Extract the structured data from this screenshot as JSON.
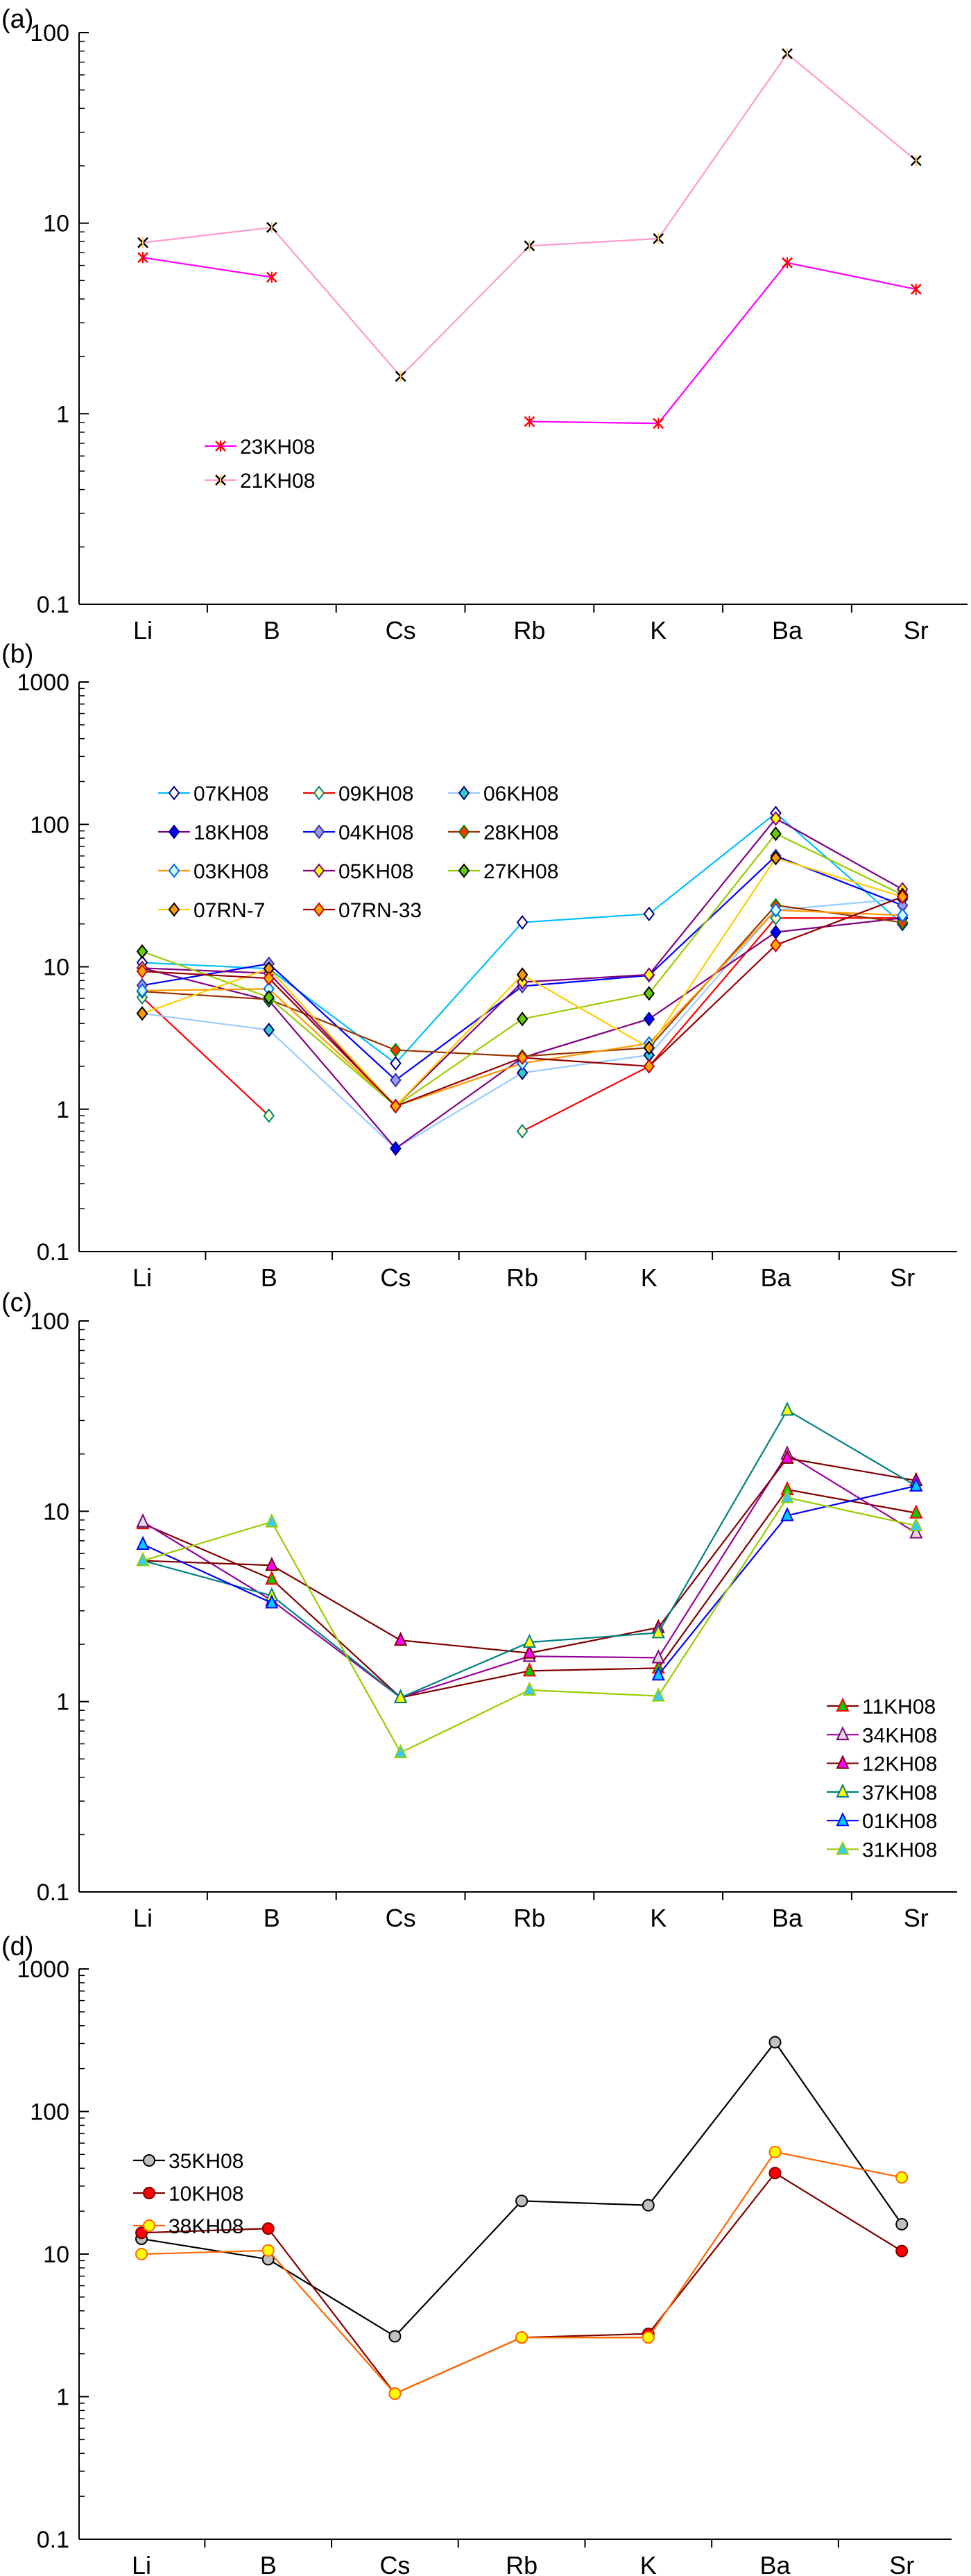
{
  "chart_data": [
    {
      "panel_label": "(a)",
      "type": "line",
      "y_scale": "log",
      "ylim": [
        0.1,
        100
      ],
      "ytick_labels": [
        "0.1",
        "1",
        "10",
        "100"
      ],
      "categories": [
        "Li",
        "B",
        "Cs",
        "Rb",
        "K",
        "Ba",
        "Sr"
      ],
      "grid": false,
      "legend_position": "center-left",
      "series": [
        {
          "name": "23KH08",
          "values": [
            6.6,
            5.2,
            null,
            0.91,
            0.89,
            6.2,
            4.5
          ],
          "line_color": "#ff00ff",
          "marker": "asterisk",
          "marker_fill": "#ff0000",
          "marker_stroke": "#ff0000"
        },
        {
          "name": "21KH08",
          "values": [
            7.9,
            9.5,
            1.57,
            7.6,
            8.3,
            77.5,
            21.3
          ],
          "line_color": "#ff99cc",
          "marker": "asterisk",
          "marker_fill": "#ffcc66",
          "marker_stroke": "#000000"
        }
      ]
    },
    {
      "panel_label": "(b)",
      "type": "line",
      "y_scale": "log",
      "ylim": [
        0.1,
        1000
      ],
      "ytick_labels": [
        "0.1",
        "1",
        "10",
        "100",
        "1000"
      ],
      "categories": [
        "Li",
        "B",
        "Cs",
        "Rb",
        "K",
        "Ba",
        "Sr"
      ],
      "grid": false,
      "legend_position": "top-left",
      "series": [
        {
          "name": "07KH08",
          "values": [
            10.7,
            9.7,
            2.1,
            20.5,
            23.5,
            120,
            20
          ],
          "line_color": "#00bfff",
          "marker": "diamond",
          "marker_fill": "#ffffff",
          "marker_stroke": "#000080"
        },
        {
          "name": "09KH08",
          "values": [
            6.1,
            0.9,
            null,
            0.7,
            2.0,
            22,
            22
          ],
          "line_color": "#ff0000",
          "marker": "diamond",
          "marker_fill": "#ffffcc",
          "marker_stroke": "#008080"
        },
        {
          "name": "06KH08",
          "values": [
            4.7,
            3.6,
            0.53,
            1.8,
            2.4,
            25,
            30
          ],
          "line_color": "#99ccff",
          "marker": "diamond",
          "marker_fill": "#33cccc",
          "marker_stroke": "#000080"
        },
        {
          "name": "18KH08",
          "values": [
            9.8,
            5.8,
            0.53,
            2.3,
            4.3,
            17.5,
            22
          ],
          "line_color": "#800080",
          "marker": "diamond",
          "marker_fill": "#0000ff",
          "marker_stroke": "#000080"
        },
        {
          "name": "04KH08",
          "values": [
            7.4,
            10.5,
            1.6,
            7.3,
            8.7,
            60,
            27
          ],
          "line_color": "#0000ff",
          "marker": "diamond",
          "marker_fill": "#9999ff",
          "marker_stroke": "#333399"
        },
        {
          "name": "28KH08",
          "values": [
            6.7,
            5.9,
            2.6,
            2.35,
            2.7,
            27,
            20.5
          ],
          "line_color": "#993300",
          "marker": "diamond",
          "marker_fill": "#ff3300",
          "marker_stroke": "#008000"
        },
        {
          "name": "03KH08",
          "values": [
            6.8,
            7.0,
            1.05,
            2.1,
            2.9,
            25,
            23
          ],
          "line_color": "#ff9900",
          "marker": "diamond",
          "marker_fill": "#ccffff",
          "marker_stroke": "#0066ff"
        },
        {
          "name": "05KH08",
          "values": [
            9.8,
            9.0,
            1.05,
            7.8,
            8.8,
            110,
            35
          ],
          "line_color": "#800080",
          "marker": "diamond",
          "marker_fill": "#ffff00",
          "marker_stroke": "#800080"
        },
        {
          "name": "27KH08",
          "values": [
            12.8,
            6.1,
            1.05,
            4.3,
            6.5,
            86,
            32
          ],
          "line_color": "#99cc00",
          "marker": "diamond",
          "marker_fill": "#66cc00",
          "marker_stroke": "#000000"
        },
        {
          "name": "07RN-7",
          "values": [
            4.7,
            9.7,
            1.05,
            8.8,
            2.7,
            58,
            31
          ],
          "line_color": "#ffcc00",
          "marker": "diamond",
          "marker_fill": "#ff9900",
          "marker_stroke": "#000000"
        },
        {
          "name": "07RN-33",
          "values": [
            9.3,
            8.3,
            1.05,
            2.3,
            2.0,
            14.2,
            31
          ],
          "line_color": "#990000",
          "marker": "diamond",
          "marker_fill": "#ffaa00",
          "marker_stroke": "#cc0000"
        }
      ]
    },
    {
      "panel_label": "(c)",
      "type": "line",
      "y_scale": "log",
      "ylim": [
        0.1,
        100
      ],
      "ytick_labels": [
        "0.1",
        "1",
        "10",
        "100"
      ],
      "categories": [
        "Li",
        "B",
        "Cs",
        "Rb",
        "K",
        "Ba",
        "Sr"
      ],
      "grid": false,
      "legend_position": "bottom-right",
      "series": [
        {
          "name": "11KH08",
          "values": [
            8.6,
            4.4,
            1.05,
            1.45,
            1.5,
            13,
            9.8
          ],
          "line_color": "#800000",
          "marker": "triangle",
          "marker_fill": "#00cc00",
          "marker_stroke": "#ff0000"
        },
        {
          "name": "34KH08",
          "values": [
            8.8,
            3.4,
            1.05,
            1.73,
            1.7,
            20,
            7.7
          ],
          "line_color": "#990099",
          "marker": "triangle",
          "marker_fill": "#dddddd",
          "marker_stroke": "#800080"
        },
        {
          "name": "12KH08",
          "values": [
            5.5,
            5.2,
            2.1,
            1.8,
            2.45,
            19,
            14.5
          ],
          "line_color": "#800000",
          "marker": "triangle",
          "marker_fill": "#ff00ff",
          "marker_stroke": "#800000"
        },
        {
          "name": "37KH08",
          "values": [
            5.5,
            3.6,
            1.05,
            2.05,
            2.3,
            34,
            13.6
          ],
          "line_color": "#008080",
          "marker": "triangle",
          "marker_fill": "#ffff00",
          "marker_stroke": "#008080"
        },
        {
          "name": "01KH08",
          "values": [
            6.7,
            3.3,
            null,
            null,
            1.38,
            9.5,
            13.6
          ],
          "line_color": "#0000ff",
          "marker": "triangle",
          "marker_fill": "#00ccff",
          "marker_stroke": "#0000ff"
        },
        {
          "name": "31KH08",
          "values": [
            5.5,
            8.8,
            0.54,
            1.15,
            1.07,
            11.8,
            8.4
          ],
          "line_color": "#99cc00",
          "marker": "triangle",
          "marker_fill": "#33ccff",
          "marker_stroke": "#99cc00"
        }
      ]
    },
    {
      "panel_label": "(d)",
      "type": "line",
      "y_scale": "log",
      "ylim": [
        0.1,
        1000
      ],
      "ytick_labels": [
        "0.1",
        "1",
        "10",
        "100",
        "1000"
      ],
      "categories": [
        "Li",
        "B",
        "Cs",
        "Rb",
        "K",
        "Ba",
        "Sr"
      ],
      "grid": false,
      "legend_position": "center-left",
      "series": [
        {
          "name": "35KH08",
          "values": [
            12.8,
            9.2,
            2.65,
            23.6,
            22.0,
            306,
            16.2
          ],
          "line_color": "#000000",
          "marker": "circle",
          "marker_fill": "#c0c0c0",
          "marker_stroke": "#000000"
        },
        {
          "name": "10KH08",
          "values": [
            14.1,
            15.1,
            1.05,
            2.6,
            2.76,
            37,
            10.5
          ],
          "line_color": "#800000",
          "marker": "circle",
          "marker_fill": "#ff0000",
          "marker_stroke": "#800000"
        },
        {
          "name": "38KH08",
          "values": [
            10,
            10.6,
            1.05,
            2.6,
            2.6,
            52,
            34.5
          ],
          "line_color": "#ff6600",
          "marker": "circle",
          "marker_fill": "#ffff00",
          "marker_stroke": "#ff6600"
        }
      ]
    }
  ]
}
